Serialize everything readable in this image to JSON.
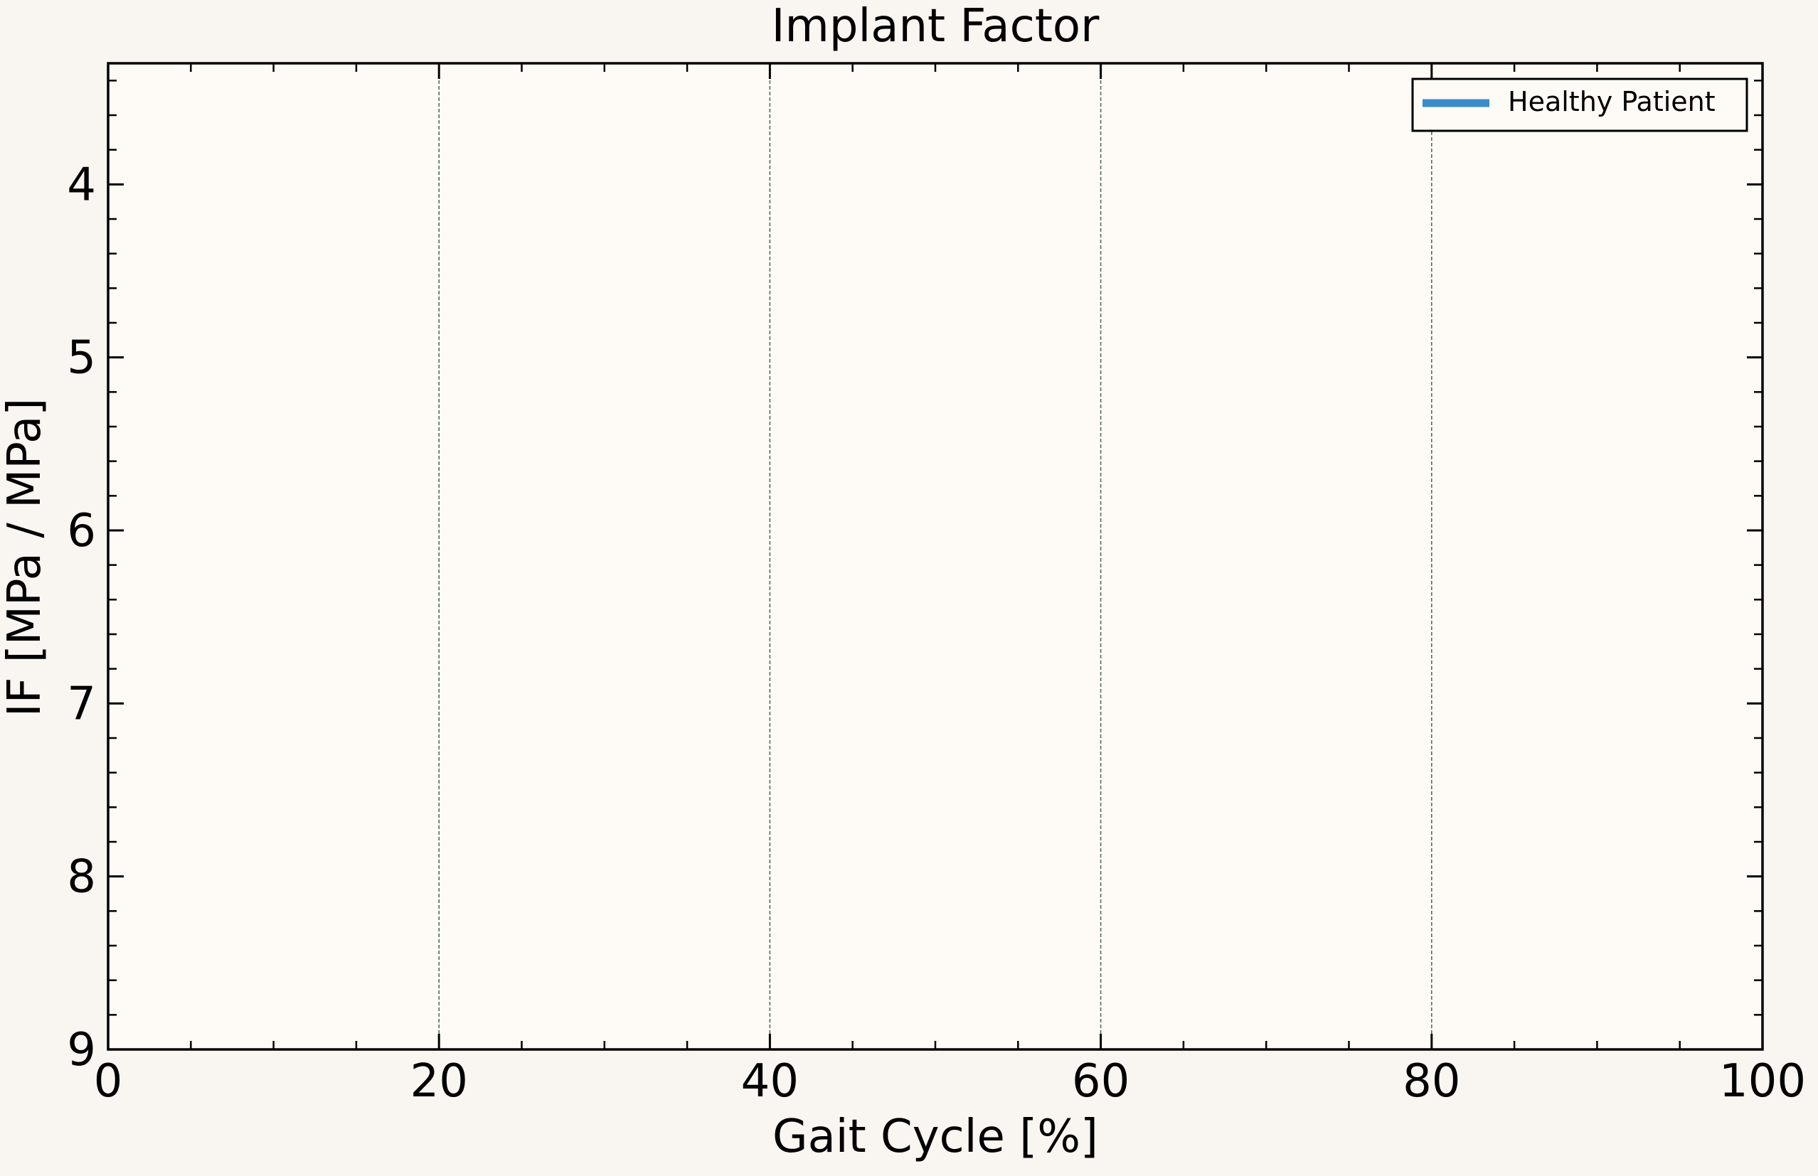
{
  "chart_data": {
    "type": "line",
    "title": "Implant Factor",
    "xlabel": "Gait Cycle [%]",
    "ylabel": "IF [MPa / MPa]",
    "xlim": [
      0,
      100
    ],
    "ylim": [
      9,
      3.3
    ],
    "y_inverted": true,
    "xticks": [
      0,
      20,
      40,
      60,
      80,
      100
    ],
    "xtick_labels": [
      "0",
      "20",
      "40",
      "60",
      "80",
      "100"
    ],
    "yticks": [
      4,
      5,
      6,
      7,
      8,
      9
    ],
    "ytick_labels": [
      "4",
      "5",
      "6",
      "7",
      "8",
      "9"
    ],
    "x_minor_step": 5,
    "y_minor_step": 0.2,
    "grid": "x-major-dashed",
    "legend_position": "top-right",
    "series": [
      {
        "name": "Healthy Patient",
        "color": "#3a8bc8",
        "x": [],
        "y": []
      }
    ]
  },
  "colors": {
    "figure_background": "#f9f6f2",
    "axes_background": "#fefaf6",
    "grid": "#556b5a"
  }
}
